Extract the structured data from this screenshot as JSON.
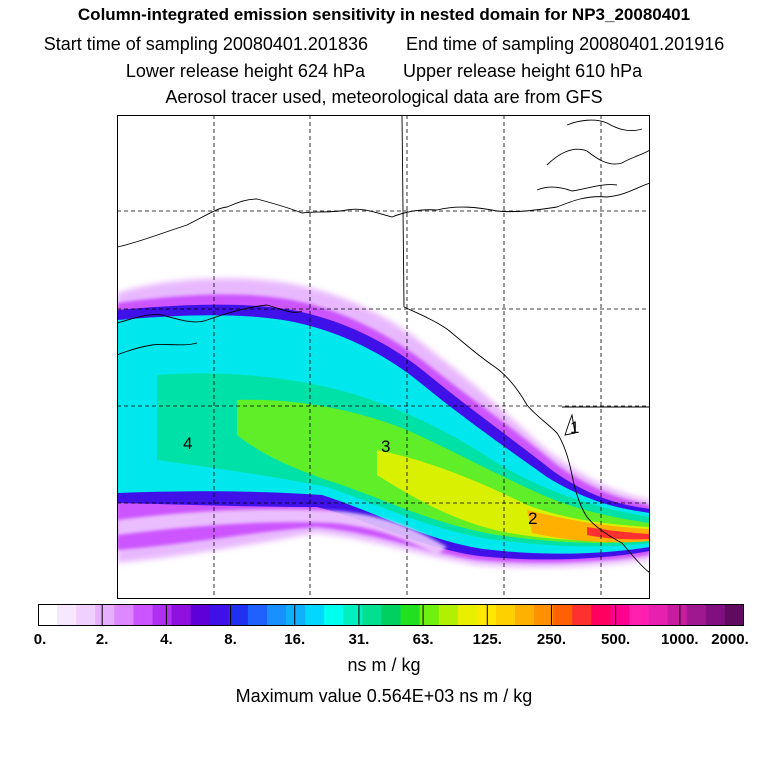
{
  "titles": {
    "main": "Column-integrated emission sensitivity in nested domain for NP3_20080401",
    "start_sampling": "Start time of sampling 20080401.201836",
    "end_sampling": "End time of sampling 20080401.201916",
    "lower_release": "Lower release height  624 hPa",
    "upper_release": "Upper release height  610 hPa",
    "tracer_info": "Aerosol tracer used, meteorological data are from GFS"
  },
  "map": {
    "region_labels": [
      {
        "id": "1",
        "text": "1"
      },
      {
        "id": "2",
        "text": "2"
      },
      {
        "id": "3",
        "text": "3"
      },
      {
        "id": "4",
        "text": "4"
      }
    ],
    "gridlines": "dashed"
  },
  "colorbar": {
    "tick_labels": [
      "0.",
      "2.",
      "4.",
      "8.",
      "16.",
      "31.",
      "63.",
      "125.",
      "250.",
      "500.",
      "1000.",
      "2000."
    ],
    "colors": [
      "#ffffff",
      "#f8e8ff",
      "#f0d0ff",
      "#e6b0ff",
      "#dd88ff",
      "#cc55ff",
      "#b030f0",
      "#9010e0",
      "#6000d8",
      "#4010e8",
      "#2030f0",
      "#2060ff",
      "#1890ff",
      "#10b0ff",
      "#00d8ff",
      "#00ffee",
      "#00f0c0",
      "#00e090",
      "#00d060",
      "#20e020",
      "#70f010",
      "#b0f000",
      "#e8f000",
      "#ffe800",
      "#ffd000",
      "#ffb000",
      "#ff9000",
      "#ff6000",
      "#ff3030",
      "#ff0060",
      "#ff0090",
      "#ff20b0",
      "#e820b0",
      "#c81ca0",
      "#a01890",
      "#801080",
      "#600a60"
    ],
    "units": "ns m / kg",
    "max_value_text": "Maximum value  0.564E+03 ns m / kg"
  }
}
